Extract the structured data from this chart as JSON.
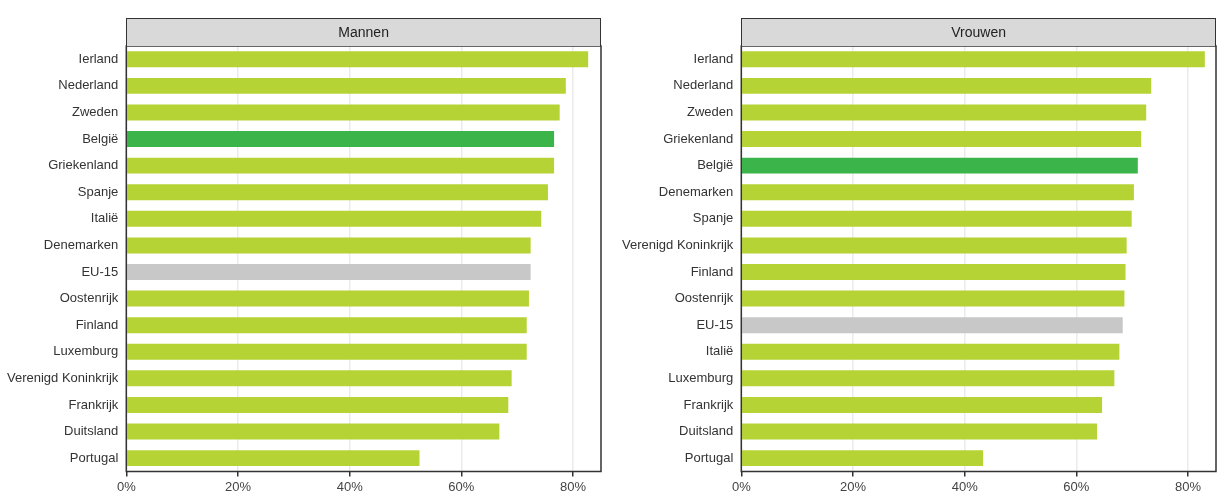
{
  "chart_data": [
    {
      "type": "bar",
      "orientation": "horizontal",
      "title": "Mannen",
      "categories": [
        "Ierland",
        "Nederland",
        "Zweden",
        "België",
        "Griekenland",
        "Spanje",
        "Italië",
        "Denemarken",
        "EU-15",
        "Oostenrijk",
        "Finland",
        "Luxemburg",
        "Verenigd Koninkrijk",
        "Frankrijk",
        "Duitsland",
        "Portugal"
      ],
      "values": [
        82.7,
        78.7,
        77.6,
        76.6,
        76.6,
        75.5,
        74.3,
        72.4,
        72.4,
        72.1,
        71.7,
        71.7,
        69.0,
        68.4,
        66.8,
        52.5
      ],
      "colors": [
        "#b5d334",
        "#b5d334",
        "#b5d334",
        "#3bb54a",
        "#b5d334",
        "#b5d334",
        "#b5d334",
        "#b5d334",
        "#c8c8c8",
        "#b5d334",
        "#b5d334",
        "#b5d334",
        "#b5d334",
        "#b5d334",
        "#b5d334",
        "#b5d334"
      ],
      "xlim": [
        0,
        85
      ],
      "xticks": [
        {
          "value": 0,
          "label": "0%"
        },
        {
          "value": 20,
          "label": "20%"
        },
        {
          "value": 40,
          "label": "40%"
        },
        {
          "value": 60,
          "label": "60%"
        },
        {
          "value": 80,
          "label": "80%"
        }
      ],
      "grid": "x"
    },
    {
      "type": "bar",
      "orientation": "horizontal",
      "title": "Vrouwen",
      "categories": [
        "Ierland",
        "Nederland",
        "Zweden",
        "Griekenland",
        "België",
        "Denemarken",
        "Spanje",
        "Verenigd Koninkrijk",
        "Finland",
        "Oostenrijk",
        "EU-15",
        "Italië",
        "Luxemburg",
        "Frankrijk",
        "Duitsland",
        "Portugal"
      ],
      "values": [
        83.0,
        73.4,
        72.5,
        71.6,
        71.0,
        70.3,
        69.9,
        69.0,
        68.8,
        68.6,
        68.3,
        67.7,
        66.8,
        64.6,
        63.7,
        43.3
      ],
      "colors": [
        "#b5d334",
        "#b5d334",
        "#b5d334",
        "#b5d334",
        "#3bb54a",
        "#b5d334",
        "#b5d334",
        "#b5d334",
        "#b5d334",
        "#b5d334",
        "#c8c8c8",
        "#b5d334",
        "#b5d334",
        "#b5d334",
        "#b5d334",
        "#b5d334"
      ],
      "xlim": [
        0,
        85
      ],
      "xticks": [
        {
          "value": 0,
          "label": "0%"
        },
        {
          "value": 20,
          "label": "20%"
        },
        {
          "value": 40,
          "label": "40%"
        },
        {
          "value": 60,
          "label": "60%"
        },
        {
          "value": 80,
          "label": "80%"
        }
      ],
      "grid": "x"
    }
  ]
}
